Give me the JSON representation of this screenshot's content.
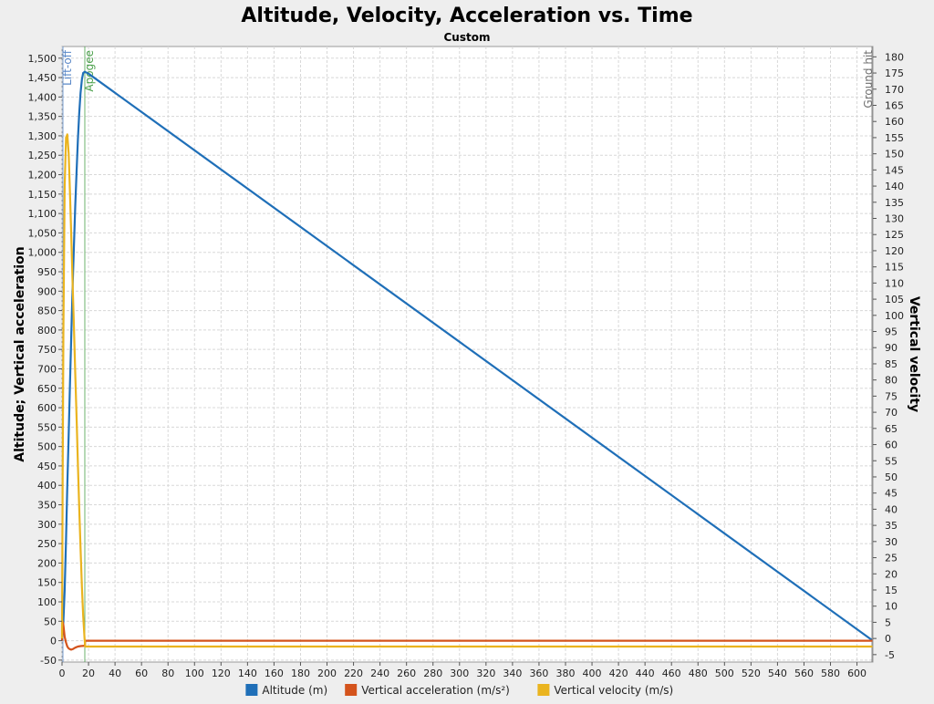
{
  "chart_data": {
    "type": "line",
    "title": "Altitude, Velocity, Acceleration vs. Time",
    "subtitle": "Custom",
    "left_axis_label": "Altitude; Vertical acceleration",
    "right_axis_label": "Vertical velocity",
    "x_range": [
      0,
      612
    ],
    "x_ticks": [
      0,
      20,
      40,
      60,
      80,
      100,
      120,
      140,
      160,
      180,
      200,
      220,
      240,
      260,
      280,
      300,
      320,
      340,
      360,
      380,
      400,
      420,
      440,
      460,
      480,
      500,
      520,
      540,
      560,
      580,
      600
    ],
    "left_range": [
      -55,
      1530
    ],
    "left_ticks": [
      -50,
      0,
      50,
      100,
      150,
      200,
      250,
      300,
      350,
      400,
      450,
      500,
      550,
      600,
      650,
      700,
      750,
      800,
      850,
      900,
      950,
      1000,
      1050,
      1100,
      1150,
      1200,
      1250,
      1300,
      1350,
      1400,
      1450,
      1500
    ],
    "left_tick_labels": [
      "-50",
      "0",
      "50",
      "100",
      "150",
      "200",
      "250",
      "300",
      "350",
      "400",
      "450",
      "500",
      "550",
      "600",
      "650",
      "700",
      "750",
      "800",
      "850",
      "900",
      "950",
      "1,000",
      "1,050",
      "1,100",
      "1,150",
      "1,200",
      "1,250",
      "1,300",
      "1,350",
      "1,400",
      "1,450",
      "1,500"
    ],
    "right_range": [
      -7.3,
      183.2
    ],
    "right_ticks": [
      -5,
      0,
      5,
      10,
      15,
      20,
      25,
      30,
      35,
      40,
      45,
      50,
      55,
      60,
      65,
      70,
      75,
      80,
      85,
      90,
      95,
      100,
      105,
      110,
      115,
      120,
      125,
      130,
      135,
      140,
      145,
      150,
      155,
      160,
      165,
      170,
      175,
      180
    ],
    "grid": true,
    "legend_position": "bottom",
    "events": [
      {
        "label": "Lift-off",
        "x": 0,
        "color": "#5a88c8"
      },
      {
        "label": "Apogee",
        "x": 17.2,
        "color": "#4aa04a"
      },
      {
        "label": "Ground hit",
        "x": 612,
        "color": "#707070"
      }
    ],
    "series": [
      {
        "name": "Altitude (m)",
        "color": "#1f6fb8",
        "axis": "left",
        "x": [
          0,
          0.5,
          1,
          2,
          3,
          4,
          5,
          6,
          7,
          8,
          9,
          10,
          11,
          12,
          13,
          14,
          15,
          16,
          17.2,
          20,
          612
        ],
        "values": [
          0,
          25,
          50,
          130,
          260,
          400,
          530,
          660,
          790,
          910,
          1020,
          1120,
          1210,
          1290,
          1360,
          1410,
          1445,
          1462,
          1465,
          1460,
          0
        ]
      },
      {
        "name": "Vertical acceleration (m/s²)",
        "color": "#d4531c",
        "axis": "left",
        "x": [
          0,
          0.4,
          1,
          2,
          3,
          4,
          5,
          6,
          7,
          8,
          10,
          12,
          14,
          17.2,
          17.5,
          612
        ],
        "values": [
          0,
          50,
          40,
          10,
          -5,
          -15,
          -20,
          -22,
          -23,
          -22,
          -18,
          -15,
          -14,
          -13,
          0,
          0
        ]
      },
      {
        "name": "Vertical velocity (m/s)",
        "color": "#eab41f",
        "axis": "right",
        "x": [
          0,
          0.5,
          1,
          2,
          3,
          4,
          5,
          6,
          7,
          8,
          9,
          10,
          11,
          12,
          13,
          14,
          15,
          16,
          17,
          17.5,
          612
        ],
        "values": [
          0,
          50,
          95,
          140,
          155,
          156,
          150,
          138,
          124,
          110,
          96,
          82,
          68,
          54,
          40,
          28,
          16,
          7,
          0,
          -2.5,
          -2.5
        ]
      }
    ]
  }
}
